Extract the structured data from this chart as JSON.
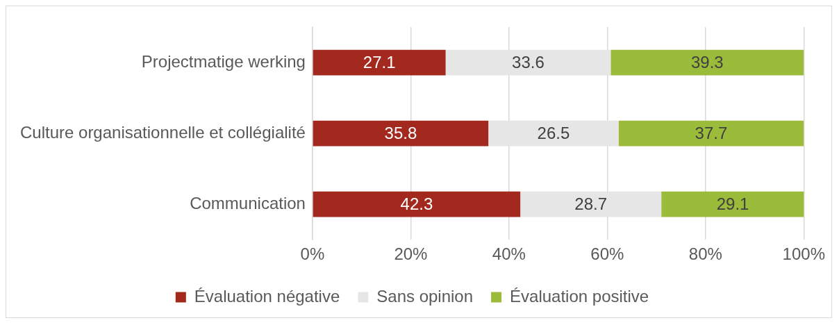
{
  "chart_data": {
    "type": "bar",
    "orientation": "horizontal",
    "stacked": true,
    "categories": [
      "Projectmatige werking",
      "Culture organisationnelle et collégialité",
      "Communication"
    ],
    "series": [
      {
        "name": "Évaluation négative",
        "color": "#a3291f",
        "values": [
          27.1,
          35.8,
          42.3
        ]
      },
      {
        "name": "Sans opinion",
        "color": "#e6e6e6",
        "values": [
          33.6,
          26.5,
          28.7
        ]
      },
      {
        "name": "Évaluation positive",
        "color": "#9bbb3a",
        "values": [
          39.3,
          37.7,
          29.1
        ]
      }
    ],
    "xlim": [
      0,
      100
    ],
    "xticks": [
      {
        "value": 0,
        "label": "0%"
      },
      {
        "value": 20,
        "label": "20%"
      },
      {
        "value": 40,
        "label": "40%"
      },
      {
        "value": 60,
        "label": "60%"
      },
      {
        "value": 80,
        "label": "80%"
      },
      {
        "value": 100,
        "label": "100%"
      }
    ],
    "grid": "x",
    "legend": "bottom",
    "data_labels": true
  }
}
